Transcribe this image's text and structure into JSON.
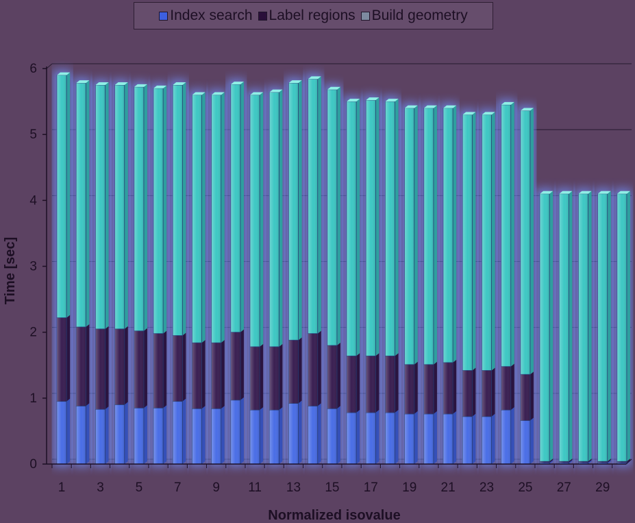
{
  "chart_data": {
    "type": "bar",
    "stacked": true,
    "xlabel": "Normalized isovalue",
    "ylabel": "Time [sec]",
    "ylim": [
      0,
      6
    ],
    "yticks": [
      0,
      1,
      2,
      3,
      4,
      5,
      6
    ],
    "grid": true,
    "legend_position": "top",
    "categories": [
      1,
      2,
      3,
      4,
      5,
      6,
      7,
      8,
      9,
      10,
      11,
      12,
      13,
      14,
      15,
      16,
      17,
      18,
      19,
      20,
      21,
      22,
      23,
      24,
      25,
      26,
      27,
      28,
      29,
      30
    ],
    "xtick_labels": [
      "1",
      "3",
      "5",
      "7",
      "9",
      "11",
      "13",
      "15",
      "17",
      "19",
      "21",
      "23",
      "25",
      "27",
      "29"
    ],
    "series": [
      {
        "name": "Index search",
        "color": "#4a6ee6",
        "values": [
          0.95,
          0.88,
          0.83,
          0.9,
          0.85,
          0.85,
          0.95,
          0.84,
          0.84,
          0.97,
          0.82,
          0.82,
          0.92,
          0.88,
          0.84,
          0.78,
          0.78,
          0.78,
          0.76,
          0.76,
          0.76,
          0.72,
          0.72,
          0.82,
          0.66,
          0.02,
          0.02,
          0.02,
          0.02,
          0.02
        ]
      },
      {
        "name": "Label regions",
        "color": "#3a1f52",
        "values": [
          1.27,
          1.2,
          1.22,
          1.15,
          1.17,
          1.13,
          1.0,
          1.0,
          1.0,
          1.03,
          0.96,
          0.96,
          0.96,
          1.1,
          0.96,
          0.86,
          0.86,
          0.86,
          0.75,
          0.75,
          0.78,
          0.7,
          0.7,
          0.66,
          0.7,
          0.02,
          0.02,
          0.02,
          0.02,
          0.02
        ]
      },
      {
        "name": "Build geometry",
        "color": "#3ec8c4",
        "values": [
          3.68,
          3.7,
          3.7,
          3.7,
          3.7,
          3.72,
          3.8,
          3.76,
          3.76,
          3.76,
          3.82,
          3.86,
          3.9,
          3.86,
          3.88,
          3.86,
          3.88,
          3.86,
          3.89,
          3.89,
          3.86,
          3.88,
          3.88,
          3.97,
          4.0,
          4.06,
          4.06,
          4.06,
          4.06,
          4.06
        ]
      }
    ]
  },
  "legend": [
    {
      "label": "Index search",
      "color": "#3d5fe0"
    },
    {
      "label": "Label regions",
      "color": "#2a0f3a"
    },
    {
      "label": "Build geometry",
      "color": "#7d8aa0"
    }
  ]
}
